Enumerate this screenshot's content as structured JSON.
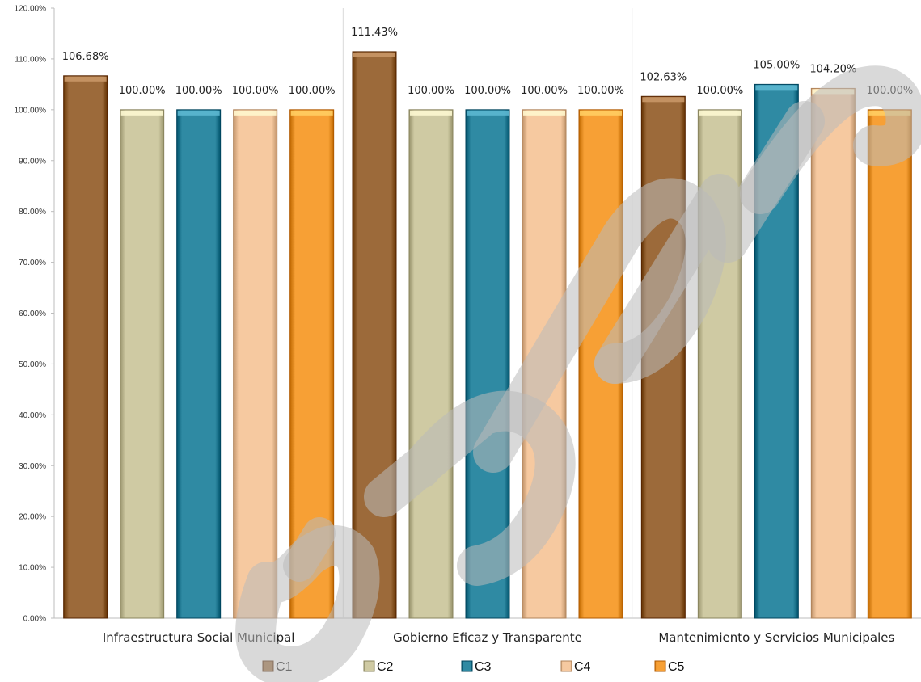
{
  "chart_data": {
    "type": "bar",
    "ylim": [
      0,
      120
    ],
    "y_ticks": [
      "0.00%",
      "10.00%",
      "20.00%",
      "30.00%",
      "40.00%",
      "50.00%",
      "60.00%",
      "70.00%",
      "80.00%",
      "90.00%",
      "100.00%",
      "110.00%",
      "120.00%"
    ],
    "categories": [
      "Infraestructura Social Municipal",
      "Gobierno Eficaz y Transparente",
      "Mantenimiento y Servicios Municipales"
    ],
    "series": [
      {
        "name": "C1",
        "color": "#9c6a3a",
        "values": [
          106.68,
          111.43,
          102.63
        ],
        "labels": [
          "106.68%",
          "111.43%",
          "102.63%"
        ]
      },
      {
        "name": "C2",
        "color": "#cfcaa3",
        "values": [
          100,
          100,
          100
        ],
        "labels": [
          "100.00%",
          "100.00%",
          "100.00%"
        ]
      },
      {
        "name": "C3",
        "color": "#2f8aa3",
        "values": [
          100,
          100,
          105
        ],
        "labels": [
          "100.00%",
          "100.00%",
          "105.00%"
        ]
      },
      {
        "name": "C4",
        "color": "#f6c9a0",
        "values": [
          100,
          100,
          104.2
        ],
        "labels": [
          "100.00%",
          "100.00%",
          "104.20%"
        ]
      },
      {
        "name": "C5",
        "color": "#f7a035",
        "values": [
          100,
          100,
          100
        ],
        "labels": [
          "100.00%",
          "100.00%",
          "100.00%"
        ]
      }
    ],
    "grid": false,
    "legend_position": "bottom"
  }
}
